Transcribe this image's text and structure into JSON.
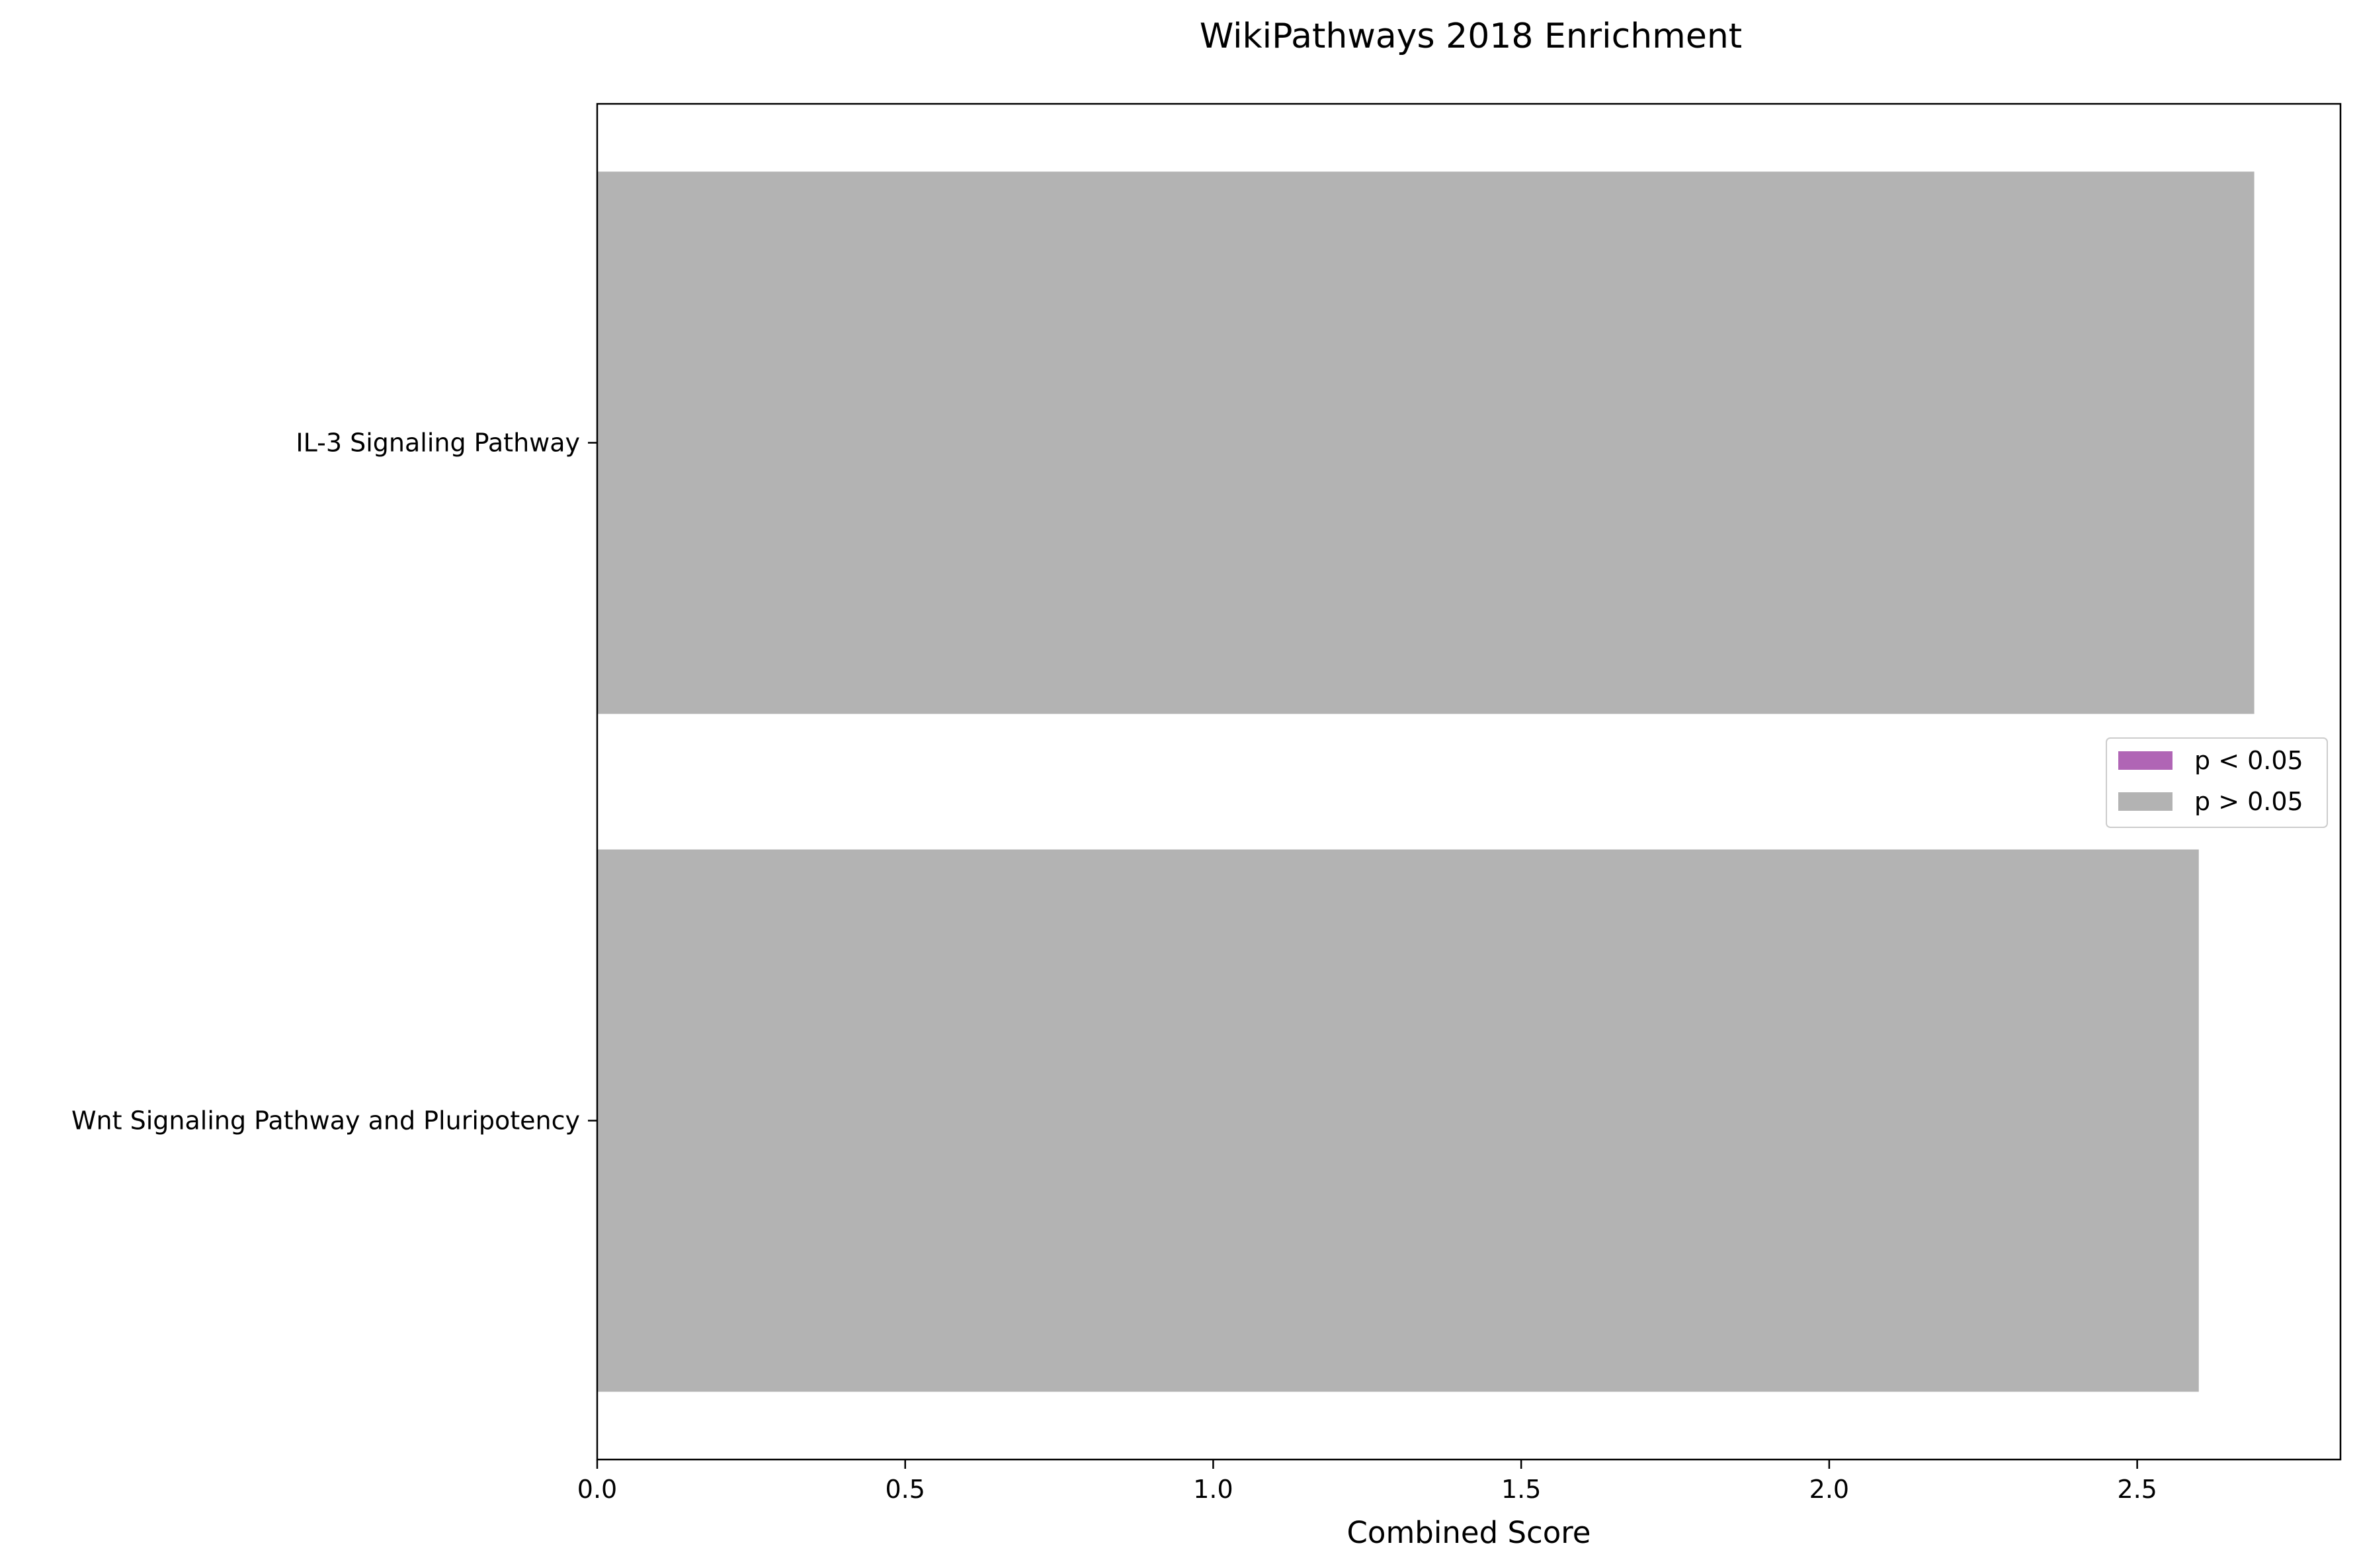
{
  "chart_data": {
    "type": "bar",
    "orientation": "horizontal",
    "title": "WikiPathways 2018 Enrichment",
    "xlabel": "Combined Score",
    "ylabel": "",
    "xlim": [
      0,
      2.83
    ],
    "x_ticks": [
      0.0,
      0.5,
      1.0,
      1.5,
      2.0,
      2.5
    ],
    "x_tick_labels": [
      "0.0",
      "0.5",
      "1.0",
      "1.5",
      "2.0",
      "2.5"
    ],
    "categories": [
      "IL-3 Signaling Pathway",
      "Wnt Signaling Pathway and Pluripotency"
    ],
    "values": [
      2.69,
      2.6
    ],
    "significant": [
      false,
      false
    ],
    "grid": false,
    "legend": {
      "placement": "center-right",
      "entries": [
        {
          "label": "p < 0.05",
          "color": "#b065b5"
        },
        {
          "label": "p > 0.05",
          "color": "#b3b3b3"
        }
      ]
    },
    "colors": {
      "significant": "#b065b5",
      "not_significant": "#b3b3b3"
    }
  }
}
